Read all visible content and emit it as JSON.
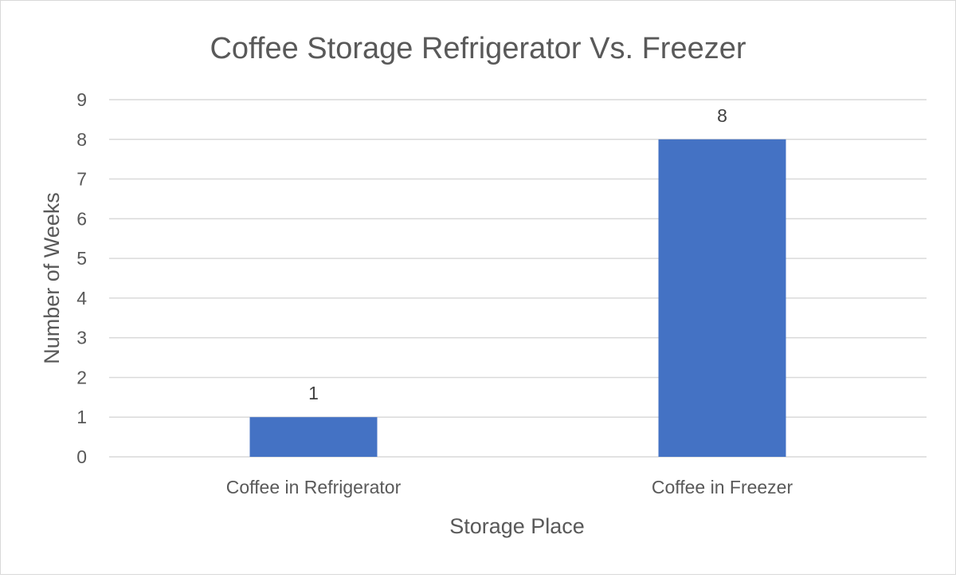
{
  "chart_data": {
    "type": "bar",
    "title": "Coffee Storage Refrigerator Vs. Freezer",
    "xlabel": "Storage Place",
    "ylabel": "Number of Weeks",
    "categories": [
      "Coffee in Refrigerator",
      "Coffee in Freezer"
    ],
    "values": [
      1,
      8
    ],
    "data_labels": [
      "1",
      "8"
    ],
    "ylim": [
      0,
      9
    ],
    "yticks": [
      "0",
      "1",
      "2",
      "3",
      "4",
      "5",
      "6",
      "7",
      "8",
      "9"
    ],
    "grid": true,
    "legend": "none",
    "colors": {
      "bar": "#4472C4",
      "grid": "#D9D9D9",
      "text": "#595959",
      "title": "#595959"
    }
  }
}
